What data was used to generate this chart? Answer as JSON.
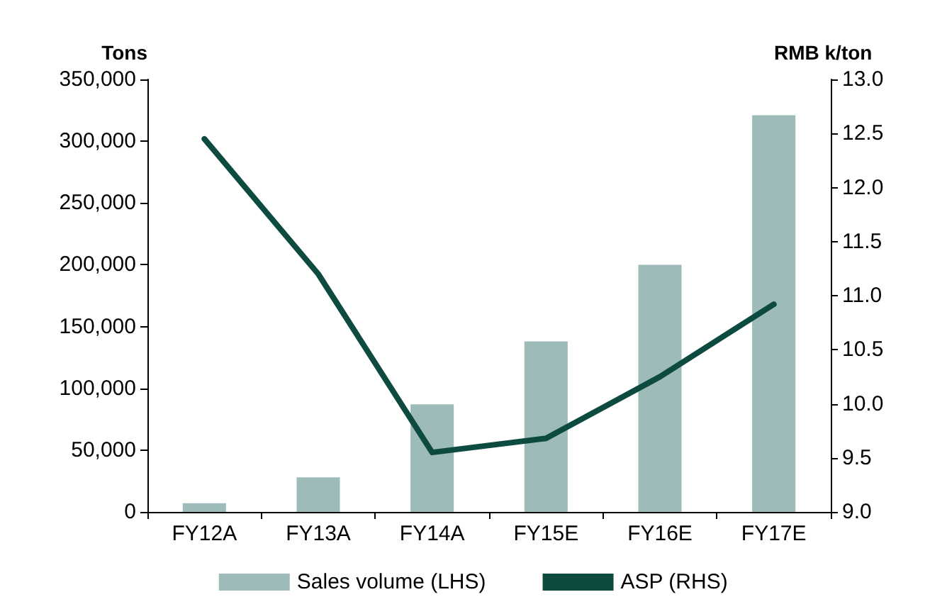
{
  "chart_data": {
    "type": "bar",
    "ylabel": "Tons",
    "y2label": "RMB k/ton",
    "categories": [
      "FY12A",
      "FY13A",
      "FY14A",
      "FY15E",
      "FY16E",
      "FY17E"
    ],
    "series": [
      {
        "name": "Sales volume (LHS)",
        "color": "#9dbcb9",
        "values": [
          7000,
          28000,
          87000,
          138000,
          200000,
          321000
        ]
      },
      {
        "name": "ASP (RHS)",
        "type": "line",
        "axis": "y2",
        "color": "#0d4a3f",
        "values": [
          12.45,
          11.2,
          9.55,
          9.68,
          10.25,
          10.92
        ]
      }
    ],
    "ylim": [
      0,
      350000
    ],
    "yticks": [
      0,
      {
        "value": 50000,
        "label": "50,000"
      },
      {
        "value": 100000,
        "label": "100,000"
      },
      {
        "value": 150000,
        "label": "150,000"
      },
      {
        "value": 200000,
        "label": "200,000"
      },
      {
        "value": 250000,
        "label": "250,000"
      },
      {
        "value": 300000,
        "label": "300,000"
      },
      {
        "value": 350000,
        "label": "350,000"
      }
    ],
    "y2lim": [
      9.0,
      13.0
    ],
    "y2ticks": [
      {
        "value": 9,
        "label": "9.0"
      },
      9.5,
      {
        "value": 10,
        "label": "10.0"
      },
      10.5,
      {
        "value": 11,
        "label": "11.0"
      },
      11.5,
      {
        "value": 12,
        "label": "12.0"
      },
      12.5,
      {
        "value": 13,
        "label": "13.0"
      }
    ],
    "grid": false,
    "legend": "bottom",
    "marker": "none",
    "line_style": "solid"
  }
}
